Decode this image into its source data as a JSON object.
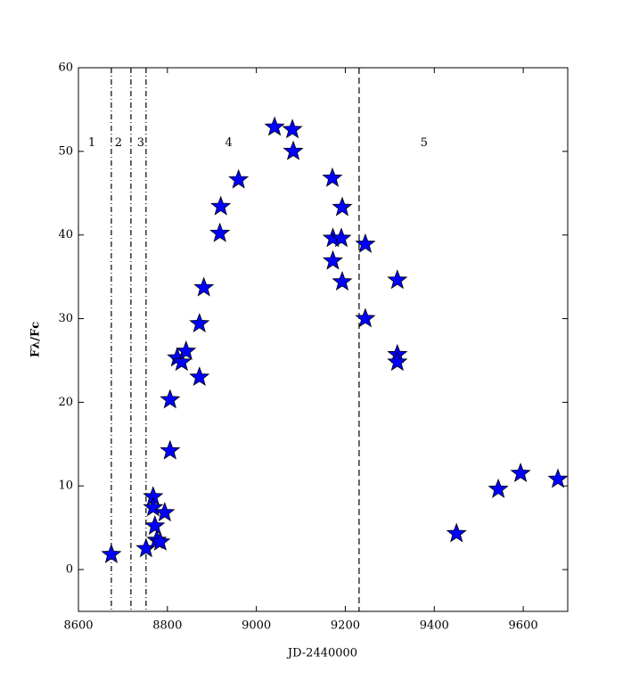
{
  "chart_data": {
    "type": "scatter",
    "x_label": "JD-2440000",
    "y_label": "Fλ/Fc",
    "x": [
      8674,
      8752,
      8768,
      8768,
      8772,
      8776,
      8784,
      8794,
      8806,
      8806,
      8822,
      8832,
      8842,
      8872,
      8872,
      8882,
      8918,
      8920,
      8960,
      9041,
      9081,
      9083,
      9171,
      9172,
      9172,
      9191,
      9193,
      9193,
      9245,
      9245,
      9317,
      9317,
      9317,
      9450,
      9544,
      9594,
      9678
    ],
    "values": [
      1.8,
      2.5,
      8.7,
      7.4,
      5.2,
      3.5,
      3.3,
      6.8,
      14.2,
      20.3,
      25.3,
      24.8,
      26.1,
      23.0,
      29.4,
      33.7,
      40.2,
      43.4,
      46.6,
      52.9,
      52.6,
      50.0,
      46.8,
      36.9,
      39.6,
      39.6,
      43.3,
      34.4,
      38.9,
      30.0,
      34.6,
      25.7,
      24.8,
      4.3,
      9.6,
      11.5,
      10.8
    ],
    "color": "#0000ff",
    "xlim": [
      8600,
      9700
    ],
    "xticks": [
      8600,
      8800,
      9000,
      9200,
      9400,
      9600
    ],
    "ylim": [
      -5,
      60
    ],
    "yticks": [
      0,
      10,
      20,
      30,
      40,
      50,
      60
    ],
    "vlines": [
      {
        "x": 8674,
        "style": "dashdot"
      },
      {
        "x": 8718,
        "style": "dashdot"
      },
      {
        "x": 8752,
        "style": "dashdot"
      },
      {
        "x": 9231,
        "style": "dashed"
      }
    ],
    "annotations": [
      {
        "text": "1",
        "x": 8630,
        "y": 51
      },
      {
        "text": "2",
        "x": 8690,
        "y": 51
      },
      {
        "text": "3",
        "x": 8740,
        "y": 51
      },
      {
        "text": "4",
        "x": 8938,
        "y": 51
      },
      {
        "text": "5",
        "x": 9377,
        "y": 51
      }
    ]
  }
}
